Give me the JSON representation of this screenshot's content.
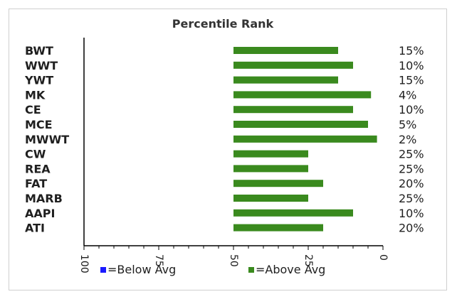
{
  "colors": {
    "below_avg": "#1a1aff",
    "above_avg": "#3a8a1e",
    "axis": "#000000",
    "frame": "#cfcfcf"
  },
  "chart_data": {
    "type": "bar",
    "orientation": "horizontal",
    "title": "Percentile Rank",
    "categories": [
      "BWT",
      "WWT",
      "YWT",
      "MK",
      "CE",
      "MCE",
      "MWWT",
      "CW",
      "REA",
      "FAT",
      "MARB",
      "AAPI",
      "ATI"
    ],
    "bar_start": [
      50,
      50,
      50,
      50,
      50,
      50,
      50,
      50,
      50,
      50,
      50,
      50,
      50
    ],
    "values": [
      15,
      10,
      15,
      4,
      10,
      5,
      2,
      25,
      25,
      20,
      25,
      10,
      20
    ],
    "value_labels": [
      "15%",
      "10%",
      "15%",
      "4%",
      "10%",
      "5%",
      "2%",
      "25%",
      "25%",
      "20%",
      "25%",
      "10%",
      "20%"
    ],
    "xlim": [
      100,
      0
    ],
    "xticks": [
      100,
      75,
      50,
      25,
      0
    ],
    "xtick_labels": [
      "100",
      "75",
      "50",
      "25",
      "0"
    ],
    "grid": false,
    "legend_position": "bottom",
    "legend": [
      {
        "label": "=Below Avg",
        "color_key": "below_avg"
      },
      {
        "label": "=Above Avg",
        "color_key": "above_avg"
      }
    ]
  }
}
